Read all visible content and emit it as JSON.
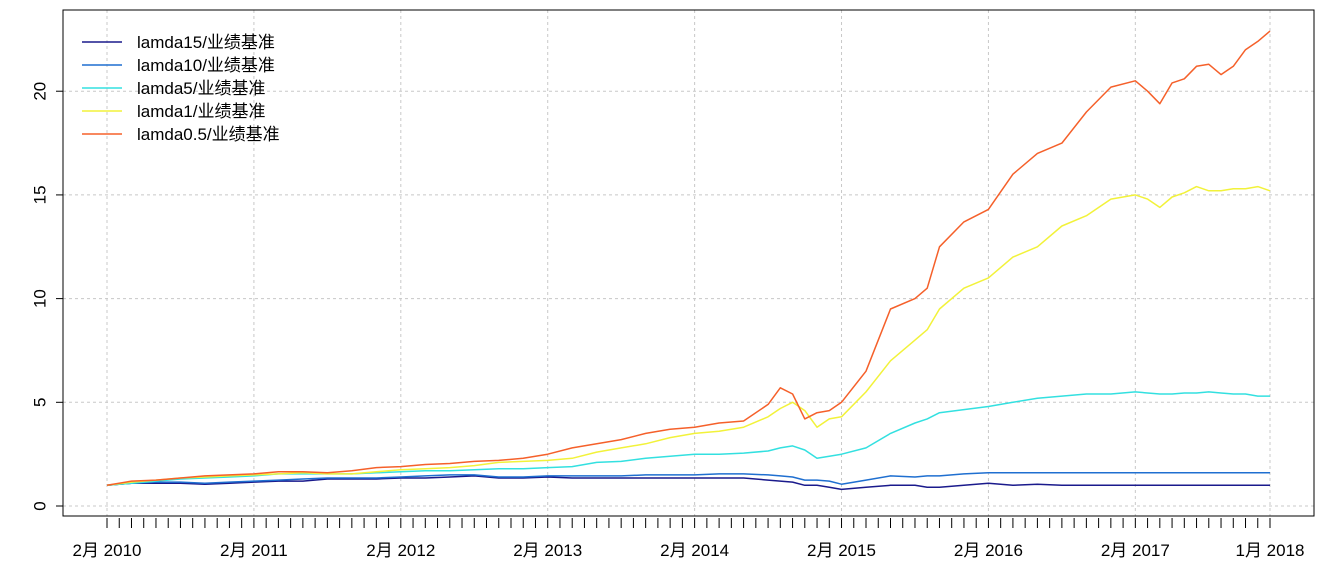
{
  "chart_data": {
    "type": "line",
    "title": "",
    "xlabel": "",
    "ylabel": "",
    "ylim": [
      0,
      23
    ],
    "xlim": [
      0,
      96
    ],
    "grid": true,
    "legend_position": "top-left",
    "y_ticks": [
      {
        "value": 0,
        "label": "0"
      },
      {
        "value": 5,
        "label": "5"
      },
      {
        "value": 10,
        "label": "10"
      },
      {
        "value": 15,
        "label": "15"
      },
      {
        "value": 20,
        "label": "20"
      }
    ],
    "x_labeled_ticks": [
      {
        "x": 0,
        "label": "2月 2010"
      },
      {
        "x": 12,
        "label": "2月 2011"
      },
      {
        "x": 24,
        "label": "2月 2012"
      },
      {
        "x": 36,
        "label": "2月 2013"
      },
      {
        "x": 48,
        "label": "2月 2014"
      },
      {
        "x": 60,
        "label": "2月 2015"
      },
      {
        "x": 72,
        "label": "2月 2016"
      },
      {
        "x": 84,
        "label": "2月 2017"
      },
      {
        "x": 95,
        "label": "1月 2018"
      }
    ],
    "x_minor_ticks": 96,
    "x": [
      0,
      2,
      4,
      6,
      8,
      10,
      12,
      14,
      16,
      18,
      20,
      22,
      24,
      26,
      28,
      30,
      32,
      34,
      36,
      38,
      40,
      42,
      44,
      46,
      48,
      50,
      52,
      54,
      55,
      56,
      57,
      58,
      59,
      60,
      62,
      64,
      66,
      67,
      68,
      70,
      72,
      74,
      76,
      78,
      80,
      82,
      84,
      85,
      86,
      87,
      88,
      89,
      90,
      91,
      92,
      93,
      94,
      95
    ],
    "series": [
      {
        "name": "lamda15/业绩基准",
        "color": "#1a1a8c",
        "values": [
          1.0,
          1.1,
          1.1,
          1.1,
          1.05,
          1.1,
          1.15,
          1.2,
          1.2,
          1.3,
          1.3,
          1.3,
          1.35,
          1.35,
          1.4,
          1.45,
          1.35,
          1.35,
          1.4,
          1.35,
          1.35,
          1.35,
          1.35,
          1.35,
          1.35,
          1.35,
          1.35,
          1.25,
          1.2,
          1.15,
          1.0,
          1.0,
          0.9,
          0.8,
          0.9,
          1.0,
          1.0,
          0.9,
          0.9,
          1.0,
          1.1,
          1.0,
          1.05,
          1.0,
          1.0,
          1.0,
          1.0,
          1.0,
          1.0,
          1.0,
          1.0,
          1.0,
          1.0,
          1.0,
          1.0,
          1.0,
          1.0,
          1.0
        ]
      },
      {
        "name": "lamda10/业绩基准",
        "color": "#1f6fd0",
        "values": [
          1.0,
          1.1,
          1.15,
          1.15,
          1.1,
          1.15,
          1.2,
          1.25,
          1.3,
          1.35,
          1.35,
          1.35,
          1.4,
          1.45,
          1.5,
          1.5,
          1.4,
          1.4,
          1.45,
          1.45,
          1.45,
          1.45,
          1.5,
          1.5,
          1.5,
          1.55,
          1.55,
          1.5,
          1.45,
          1.4,
          1.25,
          1.25,
          1.2,
          1.05,
          1.25,
          1.45,
          1.4,
          1.45,
          1.45,
          1.55,
          1.6,
          1.6,
          1.6,
          1.6,
          1.6,
          1.6,
          1.6,
          1.6,
          1.6,
          1.6,
          1.6,
          1.6,
          1.6,
          1.6,
          1.6,
          1.6,
          1.6,
          1.6
        ]
      },
      {
        "name": "lamda5/业绩基准",
        "color": "#33e0e0",
        "values": [
          1.0,
          1.1,
          1.2,
          1.3,
          1.35,
          1.4,
          1.45,
          1.55,
          1.55,
          1.55,
          1.55,
          1.6,
          1.65,
          1.7,
          1.7,
          1.75,
          1.8,
          1.8,
          1.85,
          1.9,
          2.1,
          2.15,
          2.3,
          2.4,
          2.5,
          2.5,
          2.55,
          2.65,
          2.8,
          2.9,
          2.7,
          2.3,
          2.4,
          2.5,
          2.8,
          3.5,
          4.0,
          4.2,
          4.5,
          4.65,
          4.8,
          5.0,
          5.2,
          5.3,
          5.4,
          5.4,
          5.5,
          5.45,
          5.4,
          5.4,
          5.45,
          5.45,
          5.5,
          5.45,
          5.4,
          5.4,
          5.3,
          5.3
        ]
      },
      {
        "name": "lamda1/业绩基准",
        "color": "#f2f23a",
        "values": [
          1.0,
          1.15,
          1.25,
          1.35,
          1.4,
          1.45,
          1.5,
          1.55,
          1.6,
          1.55,
          1.55,
          1.65,
          1.75,
          1.8,
          1.85,
          1.95,
          2.1,
          2.15,
          2.2,
          2.3,
          2.6,
          2.8,
          3.0,
          3.3,
          3.5,
          3.6,
          3.8,
          4.3,
          4.7,
          5.0,
          4.6,
          3.8,
          4.2,
          4.3,
          5.5,
          7.0,
          8.0,
          8.5,
          9.5,
          10.5,
          11.0,
          12.0,
          12.5,
          13.5,
          14.0,
          14.8,
          15.0,
          14.8,
          14.4,
          14.9,
          15.1,
          15.4,
          15.2,
          15.2,
          15.3,
          15.3,
          15.4,
          15.2
        ]
      },
      {
        "name": "lamda0.5/业绩基准",
        "color": "#f5602a",
        "values": [
          1.0,
          1.2,
          1.25,
          1.35,
          1.45,
          1.5,
          1.55,
          1.65,
          1.65,
          1.6,
          1.7,
          1.85,
          1.9,
          2.0,
          2.05,
          2.15,
          2.2,
          2.3,
          2.5,
          2.8,
          3.0,
          3.2,
          3.5,
          3.7,
          3.8,
          4.0,
          4.1,
          4.9,
          5.7,
          5.4,
          4.2,
          4.5,
          4.6,
          5.0,
          6.5,
          9.5,
          10.0,
          10.5,
          12.5,
          13.7,
          14.3,
          16.0,
          17.0,
          17.5,
          19.0,
          20.2,
          20.5,
          20.0,
          19.4,
          20.4,
          20.6,
          21.2,
          21.3,
          20.8,
          21.2,
          22.0,
          22.4,
          22.9
        ]
      }
    ]
  }
}
